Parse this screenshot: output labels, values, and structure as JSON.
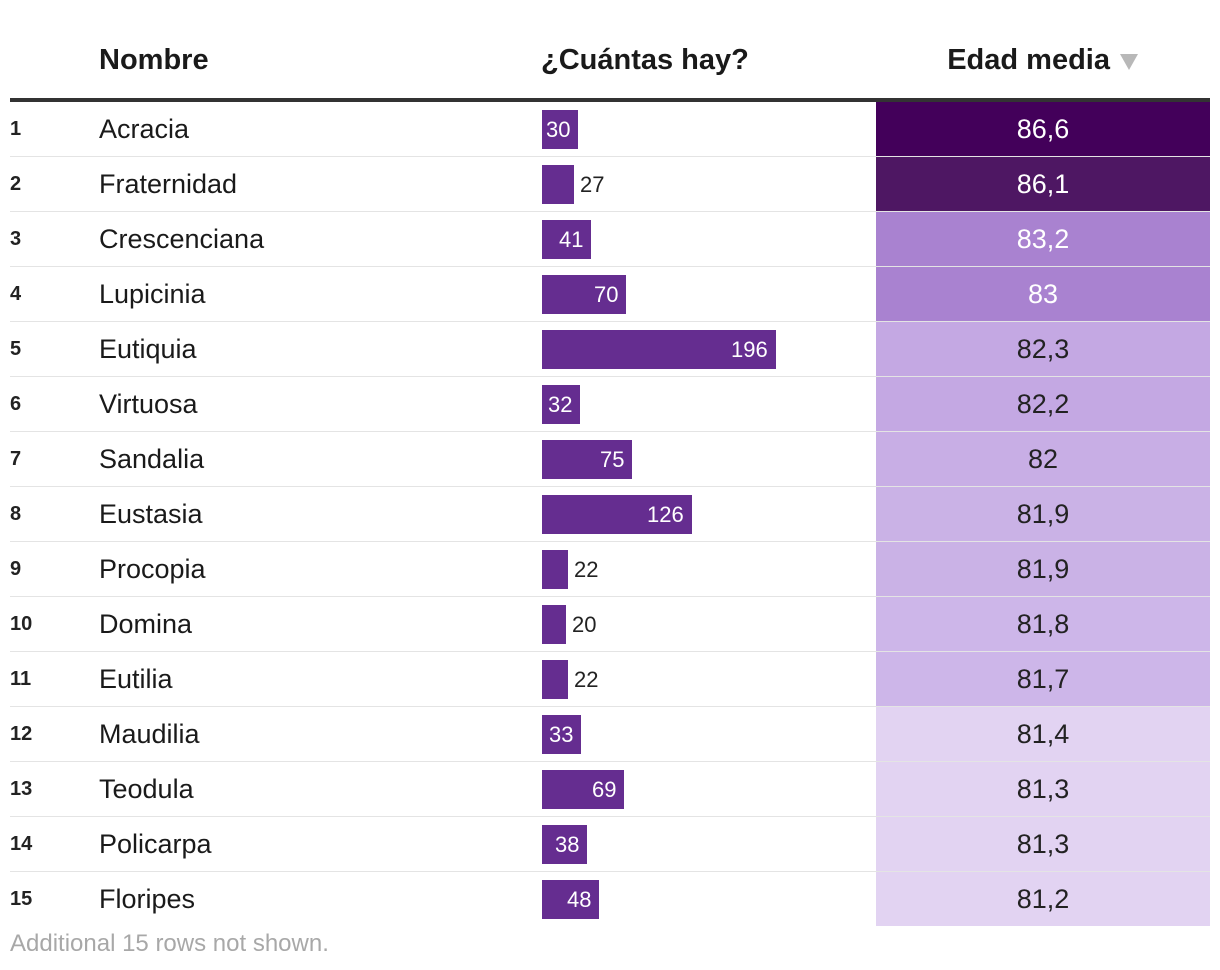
{
  "table": {
    "headers": {
      "name": "Nombre",
      "count": "¿Cuántas hay?",
      "age": "Edad media"
    },
    "sort_indicator": "sort-descending-icon",
    "footer": "Additional 15 rows not shown."
  },
  "chart_data": {
    "type": "table",
    "columns": [
      "",
      "Nombre",
      "¿Cuántas hay?",
      "Edad media"
    ],
    "bar_max": 196,
    "age_scale_colors": [
      "#e2d3f2",
      "#cdb6e9",
      "#c4a8e3",
      "#a982d0",
      "#4e1763",
      "#43005a"
    ],
    "rows": [
      {
        "rank": "1",
        "name": "Acracia",
        "count": 30,
        "age": "86,6",
        "age_value": 86.6,
        "age_color": "#43005a",
        "age_text_color": "#ffffff"
      },
      {
        "rank": "2",
        "name": "Fraternidad",
        "count": 27,
        "age": "86,1",
        "age_value": 86.1,
        "age_color": "#4e1763",
        "age_text_color": "#ffffff"
      },
      {
        "rank": "3",
        "name": "Crescenciana",
        "count": 41,
        "age": "83,2",
        "age_value": 83.2,
        "age_color": "#a982d0",
        "age_text_color": "#ffffff"
      },
      {
        "rank": "4",
        "name": "Lupicinia",
        "count": 70,
        "age": "83",
        "age_value": 83.0,
        "age_color": "#a982d0",
        "age_text_color": "#ffffff"
      },
      {
        "rank": "5",
        "name": "Eutiquia",
        "count": 196,
        "age": "82,3",
        "age_value": 82.3,
        "age_color": "#c4a8e3",
        "age_text_color": "#222222"
      },
      {
        "rank": "6",
        "name": "Virtuosa",
        "count": 32,
        "age": "82,2",
        "age_value": 82.2,
        "age_color": "#c4a8e3",
        "age_text_color": "#222222"
      },
      {
        "rank": "7",
        "name": "Sandalia",
        "count": 75,
        "age": "82",
        "age_value": 82.0,
        "age_color": "#c8aee5",
        "age_text_color": "#222222"
      },
      {
        "rank": "8",
        "name": "Eustasia",
        "count": 126,
        "age": "81,9",
        "age_value": 81.9,
        "age_color": "#cab2e6",
        "age_text_color": "#222222"
      },
      {
        "rank": "9",
        "name": "Procopia",
        "count": 22,
        "age": "81,9",
        "age_value": 81.9,
        "age_color": "#cab2e6",
        "age_text_color": "#222222"
      },
      {
        "rank": "10",
        "name": "Domina",
        "count": 20,
        "age": "81,8",
        "age_value": 81.8,
        "age_color": "#cdb6e9",
        "age_text_color": "#222222"
      },
      {
        "rank": "11",
        "name": "Eutilia",
        "count": 22,
        "age": "81,7",
        "age_value": 81.7,
        "age_color": "#cdb6e9",
        "age_text_color": "#222222"
      },
      {
        "rank": "12",
        "name": "Maudilia",
        "count": 33,
        "age": "81,4",
        "age_value": 81.4,
        "age_color": "#e2d3f2",
        "age_text_color": "#222222"
      },
      {
        "rank": "13",
        "name": "Teodula",
        "count": 69,
        "age": "81,3",
        "age_value": 81.3,
        "age_color": "#e2d3f2",
        "age_text_color": "#222222"
      },
      {
        "rank": "14",
        "name": "Policarpa",
        "count": 38,
        "age": "81,3",
        "age_value": 81.3,
        "age_color": "#e2d3f2",
        "age_text_color": "#222222"
      },
      {
        "rank": "15",
        "name": "Floripes",
        "count": 48,
        "age": "81,2",
        "age_value": 81.2,
        "age_color": "#e2d3f2",
        "age_text_color": "#222222"
      }
    ],
    "bar_color": "#652d90"
  }
}
